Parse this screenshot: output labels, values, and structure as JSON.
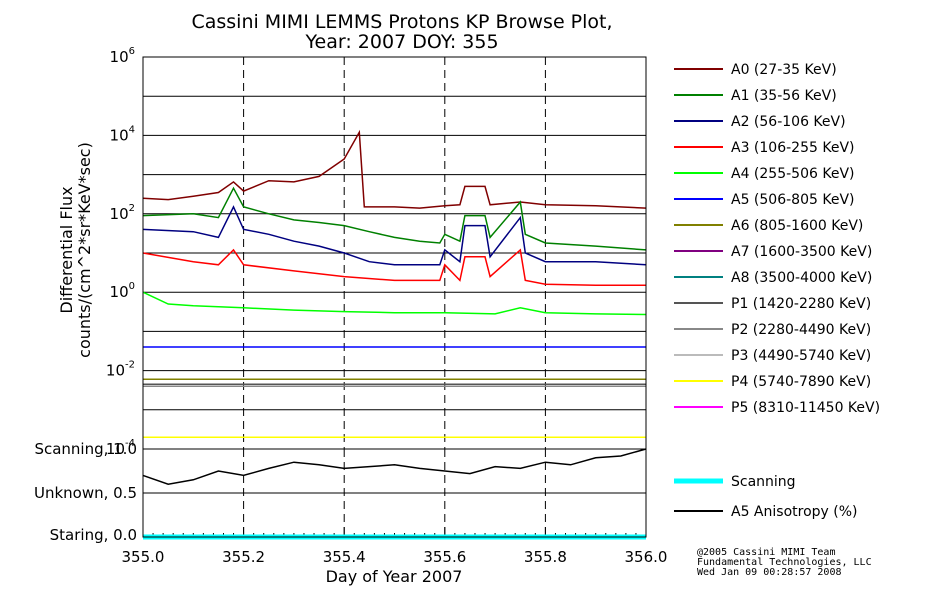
{
  "chart_data": [
    {
      "type": "line",
      "title": "Cassini MIMI LEMMS Protons KP Browse Plot,",
      "subtitle": "Year: 2007 DOY: 355",
      "ylabel_1": "Differential Flux",
      "ylabel_2": "counts/(cm^2*sr*KeV*sec)",
      "yscale": "log",
      "ylim": [
        0.0001,
        1000000
      ],
      "xlim": [
        355.0,
        356.0
      ],
      "xticks": [
        "355.0",
        "355.2",
        "355.4",
        "355.6",
        "355.8",
        "356.0"
      ],
      "ytick_labels": [
        {
          "base": "10",
          "exp": "-4"
        },
        {
          "base": "10",
          "exp": "-2"
        },
        {
          "base": "10",
          "exp": "0"
        },
        {
          "base": "10",
          "exp": "2"
        },
        {
          "base": "10",
          "exp": "4"
        },
        {
          "base": "10",
          "exp": "6"
        }
      ],
      "grid": "horizontal solid at decades, vertical dashed at 355.2, 355.4, 355.6, 355.8",
      "legend_position": "right",
      "series": [
        {
          "name": "A0 (27-35 KeV)",
          "color": "#800000",
          "x": [
            355.0,
            355.05,
            355.1,
            355.15,
            355.18,
            355.2,
            355.25,
            355.3,
            355.35,
            355.4,
            355.43,
            355.44,
            355.5,
            355.55,
            355.6,
            355.63,
            355.64,
            355.68,
            355.69,
            355.75,
            355.8,
            355.9,
            356.0
          ],
          "y": [
            250,
            230,
            280,
            350,
            650,
            380,
            700,
            650,
            900,
            2500,
            12000,
            150,
            150,
            140,
            160,
            170,
            500,
            500,
            170,
            200,
            170,
            160,
            140
          ]
        },
        {
          "name": "A1 (35-56 KeV)",
          "color": "#008000",
          "x": [
            355.0,
            355.1,
            355.15,
            355.18,
            355.2,
            355.25,
            355.3,
            355.35,
            355.4,
            355.45,
            355.5,
            355.55,
            355.59,
            355.6,
            355.63,
            355.64,
            355.68,
            355.69,
            355.75,
            355.76,
            355.8,
            355.9,
            356.0
          ],
          "y": [
            90,
            100,
            80,
            450,
            150,
            100,
            70,
            60,
            50,
            35,
            25,
            20,
            18,
            30,
            20,
            90,
            90,
            25,
            200,
            30,
            18,
            15,
            12
          ]
        },
        {
          "name": "A2 (56-106 KeV)",
          "color": "#000080",
          "x": [
            355.0,
            355.1,
            355.15,
            355.18,
            355.2,
            355.25,
            355.3,
            355.35,
            355.4,
            355.45,
            355.5,
            355.55,
            355.59,
            355.6,
            355.63,
            355.64,
            355.68,
            355.69,
            355.75,
            355.76,
            355.8,
            355.9,
            356.0
          ],
          "y": [
            40,
            35,
            25,
            150,
            40,
            30,
            20,
            15,
            10,
            6,
            5,
            5,
            5,
            12,
            6,
            50,
            50,
            8,
            80,
            10,
            6,
            6,
            5
          ]
        },
        {
          "name": "A3 (106-255 KeV)",
          "color": "#ff0000",
          "x": [
            355.0,
            355.1,
            355.15,
            355.18,
            355.2,
            355.3,
            355.4,
            355.5,
            355.55,
            355.59,
            355.6,
            355.63,
            355.64,
            355.68,
            355.69,
            355.75,
            355.76,
            355.8,
            355.9,
            356.0
          ],
          "y": [
            10,
            6,
            5,
            12,
            5,
            3.5,
            2.5,
            2,
            2,
            2,
            5,
            2,
            8,
            8,
            2.5,
            12,
            2,
            1.6,
            1.5,
            1.5
          ]
        },
        {
          "name": "A4 (255-506 KeV)",
          "color": "#00ff00",
          "x": [
            355.0,
            355.05,
            355.1,
            355.2,
            355.3,
            355.4,
            355.5,
            355.6,
            355.7,
            355.75,
            355.8,
            355.9,
            356.0
          ],
          "y": [
            1.0,
            0.5,
            0.45,
            0.4,
            0.35,
            0.32,
            0.3,
            0.3,
            0.28,
            0.4,
            0.3,
            0.28,
            0.27
          ]
        },
        {
          "name": "A5 (506-805 KeV)",
          "color": "#0000ff",
          "x": [
            355.0,
            355.2,
            355.4,
            355.6,
            355.8,
            356.0
          ],
          "y": [
            0.04,
            0.04,
            0.04,
            0.04,
            0.04,
            0.04
          ]
        },
        {
          "name": "A6 (805-1600 KeV)",
          "color": "#808000",
          "x": [
            355.0,
            355.2,
            355.4,
            355.6,
            355.8,
            356.0
          ],
          "y": [
            0.006,
            0.006,
            0.006,
            0.006,
            0.006,
            0.006
          ]
        },
        {
          "name": "A7 (1600-3500 KeV)",
          "color": "#800080",
          "x": [
            355.0,
            355.2,
            355.4,
            355.6,
            355.8,
            356.0
          ],
          "y": [
            0.004,
            0.004,
            0.004,
            0.004,
            0.004,
            0.004
          ]
        },
        {
          "name": "A8 (3500-4000 KeV)",
          "color": "#008080",
          "x": [
            355.0,
            355.2,
            355.4,
            355.6,
            355.8,
            356.0
          ],
          "y": [
            0.004,
            0.004,
            0.004,
            0.004,
            0.004,
            0.004
          ]
        },
        {
          "name": "P1 (1420-2280 KeV)",
          "color": "#555555",
          "x": [
            355.0,
            355.2,
            355.4,
            355.6,
            355.8,
            356.0
          ],
          "y": [
            0.0045,
            0.0045,
            0.0045,
            0.0045,
            0.0045,
            0.0045
          ]
        },
        {
          "name": "P2 (2280-4490 KeV)",
          "color": "#888888",
          "x": [
            355.0,
            355.2,
            355.4,
            355.6,
            355.8,
            356.0
          ],
          "y": [
            0.004,
            0.004,
            0.004,
            0.004,
            0.004,
            0.004
          ]
        },
        {
          "name": "P3 (4490-5740 KeV)",
          "color": "#bbbbbb",
          "x": [
            355.0,
            355.2,
            355.4,
            355.6,
            355.8,
            356.0
          ],
          "y": [
            0.0002,
            0.0002,
            0.0002,
            0.0002,
            0.0002,
            0.0002
          ]
        },
        {
          "name": "P4 (5740-7890 KeV)",
          "color": "#ffff00",
          "x": [
            355.0,
            355.2,
            355.4,
            355.6,
            355.8,
            356.0
          ],
          "y": [
            0.0002,
            0.0002,
            0.0002,
            0.0002,
            0.0002,
            0.0002
          ]
        },
        {
          "name": "P5 (8310-11450 KeV)",
          "color": "#ff00ff",
          "x": [],
          "y": []
        }
      ]
    },
    {
      "type": "line",
      "xlabel": "Day of Year 2007",
      "xlim": [
        355.0,
        356.0
      ],
      "ylim": [
        0.0,
        1.0
      ],
      "ytick_labels": [
        "Staring, 0.0",
        "Unknown, 0.5",
        "Scanning, 1.0"
      ],
      "series": [
        {
          "name": "Scanning",
          "color": "#00ffff",
          "x": [
            355.0,
            356.0
          ],
          "y": [
            0.0,
            0.0
          ]
        },
        {
          "name": "A5 Anisotropy (%)",
          "color": "#000000",
          "x": [
            355.0,
            355.05,
            355.1,
            355.15,
            355.2,
            355.25,
            355.3,
            355.35,
            355.4,
            355.45,
            355.5,
            355.55,
            355.6,
            355.65,
            355.7,
            355.75,
            355.8,
            355.85,
            355.9,
            355.95,
            356.0
          ],
          "y": [
            0.7,
            0.6,
            0.65,
            0.75,
            0.7,
            0.78,
            0.85,
            0.82,
            0.78,
            0.8,
            0.82,
            0.78,
            0.75,
            0.72,
            0.8,
            0.78,
            0.85,
            0.82,
            0.9,
            0.92,
            1.0
          ]
        }
      ]
    }
  ],
  "credits": {
    "line1": "@2005 Cassini MIMI Team",
    "line2": "Fundamental Technologies, LLC",
    "line3": "Wed Jan 09 00:28:57 2008"
  }
}
